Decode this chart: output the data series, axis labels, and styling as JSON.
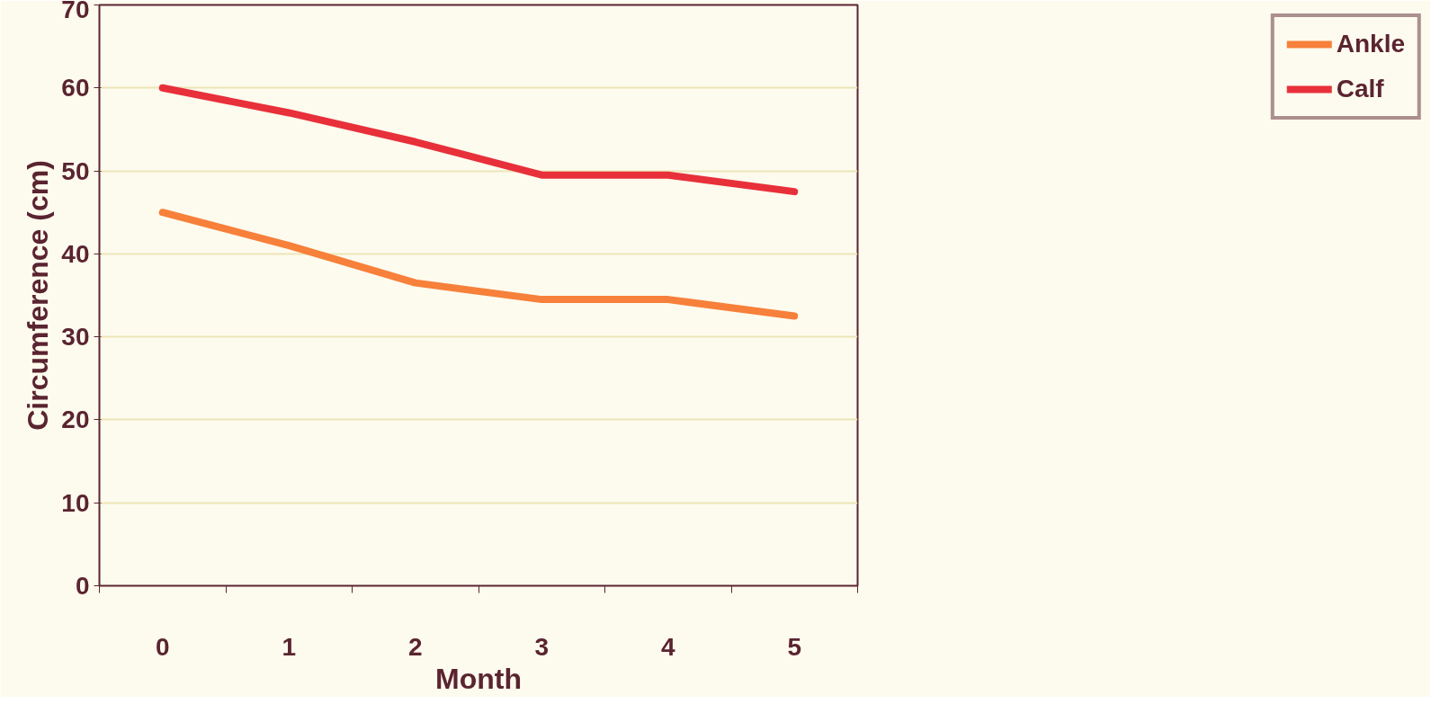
{
  "chart_data": {
    "type": "line",
    "xlabel": "Month",
    "ylabel": "Circumference (cm)",
    "categories": [
      "0",
      "1",
      "2",
      "3",
      "4",
      "5"
    ],
    "series": [
      {
        "name": "Ankle",
        "color": "#f7803a",
        "values": [
          45,
          41,
          36.5,
          34.5,
          34.5,
          32.5
        ]
      },
      {
        "name": "Calf",
        "color": "#e8303a",
        "values": [
          60,
          57,
          53.5,
          49.5,
          49.5,
          47.5
        ]
      }
    ],
    "ylim": [
      0,
      70
    ],
    "yticks": [
      0,
      10,
      20,
      30,
      40,
      50,
      60,
      70
    ],
    "grid": "y",
    "legend": "right",
    "marker": "none",
    "line_style": "solid"
  }
}
